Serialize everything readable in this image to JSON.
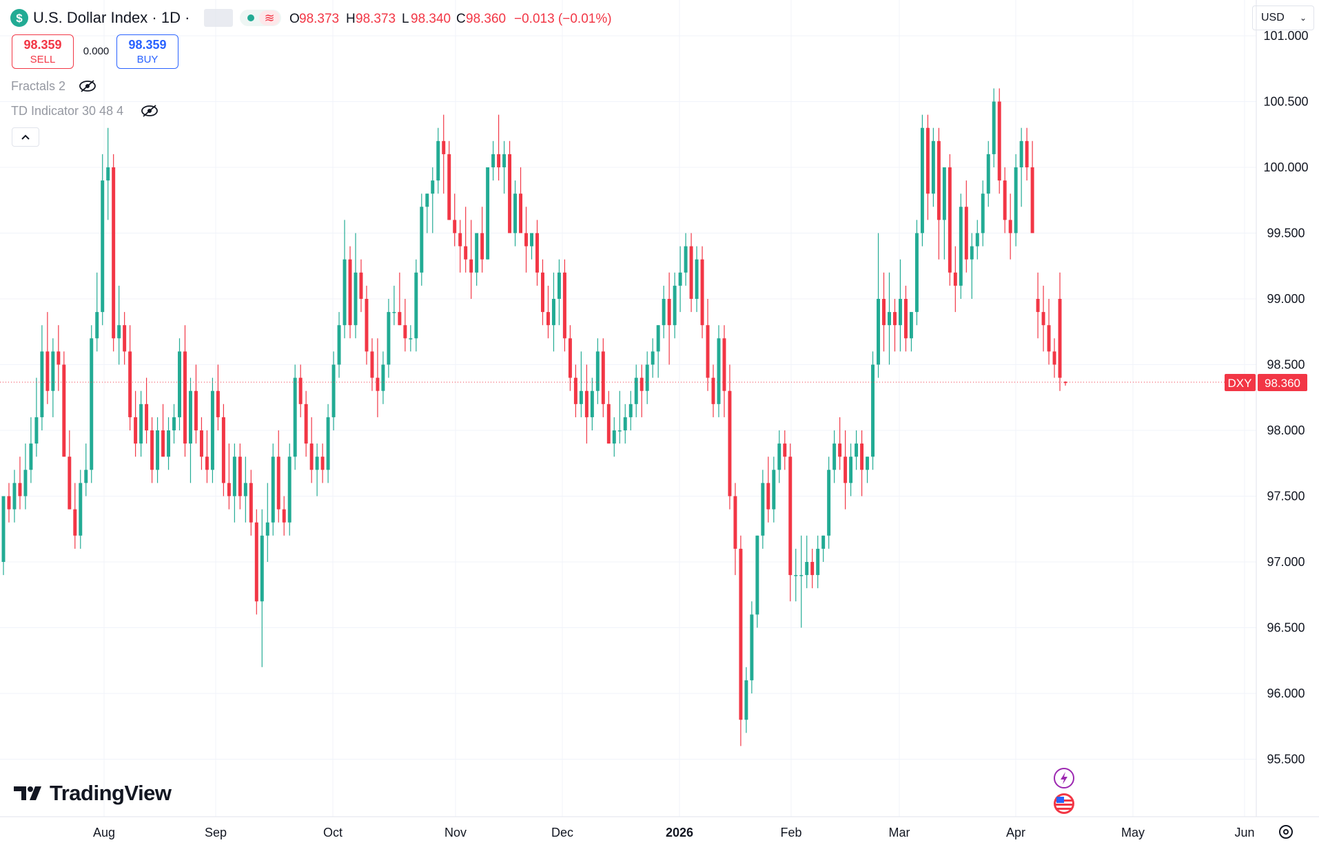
{
  "header": {
    "symbol_icon": "dollar-circle-icon",
    "title": "U.S. Dollar Index · 1D ·",
    "open_label": "O",
    "open": "98.373",
    "high_label": "H",
    "high": "98.373",
    "low_label": "L",
    "low": "98.340",
    "close_label": "C",
    "close": "98.360",
    "change": "−0.013 (−0.01%)"
  },
  "trade": {
    "sell_price": "98.359",
    "sell_label": "SELL",
    "spread": "0.000",
    "buy_price": "98.359",
    "buy_label": "BUY"
  },
  "indicators": [
    {
      "label": "Fractals 2",
      "icon": "eye-off-icon"
    },
    {
      "label": "TD Indicator 30 48 4",
      "icon": "eye-off-icon"
    }
  ],
  "currency": "USD",
  "brand": "TradingView",
  "colors": {
    "up": "#22ab94",
    "down": "#f23645",
    "grid": "#f0f3fa"
  },
  "chart_data": {
    "type": "candlestick",
    "symbol": "DXY",
    "last_price": "98.360",
    "y_ticks": [
      "101.000",
      "100.500",
      "100.000",
      "99.500",
      "99.000",
      "98.500",
      "98.000",
      "97.500",
      "97.000",
      "96.500",
      "96.000",
      "95.500"
    ],
    "x_ticks": [
      "Aug",
      "Sep",
      "Oct",
      "Nov",
      "Dec",
      "2026",
      "Feb",
      "Mar",
      "Apr",
      "May",
      "Jun"
    ],
    "ylim": [
      95.1,
      101.05
    ],
    "grid": true,
    "candles": [
      [
        97.0,
        97.5,
        96.9,
        97.5
      ],
      [
        97.5,
        97.6,
        97.3,
        97.4
      ],
      [
        97.4,
        97.7,
        97.3,
        97.6
      ],
      [
        97.6,
        97.8,
        97.4,
        97.5
      ],
      [
        97.5,
        97.9,
        97.4,
        97.7
      ],
      [
        97.7,
        98.1,
        97.6,
        97.9
      ],
      [
        97.9,
        98.4,
        97.8,
        98.1
      ],
      [
        98.1,
        98.8,
        98.0,
        98.6
      ],
      [
        98.6,
        98.9,
        98.2,
        98.3
      ],
      [
        98.3,
        98.7,
        98.1,
        98.6
      ],
      [
        98.6,
        98.8,
        98.3,
        98.5
      ],
      [
        98.5,
        98.6,
        97.8,
        97.8
      ],
      [
        97.8,
        98.0,
        97.4,
        97.4
      ],
      [
        97.4,
        97.6,
        97.1,
        97.2
      ],
      [
        97.2,
        97.7,
        97.1,
        97.6
      ],
      [
        97.6,
        97.9,
        97.5,
        97.7
      ],
      [
        97.7,
        98.8,
        97.6,
        98.7
      ],
      [
        98.7,
        99.2,
        98.6,
        98.9
      ],
      [
        98.9,
        100.1,
        98.8,
        99.9
      ],
      [
        99.9,
        100.3,
        99.6,
        100.0
      ],
      [
        100.0,
        100.1,
        98.6,
        98.7
      ],
      [
        98.7,
        99.1,
        98.5,
        98.8
      ],
      [
        98.8,
        98.9,
        98.5,
        98.6
      ],
      [
        98.6,
        98.8,
        98.0,
        98.1
      ],
      [
        98.1,
        98.3,
        97.8,
        97.9
      ],
      [
        97.9,
        98.3,
        97.8,
        98.2
      ],
      [
        98.2,
        98.4,
        97.9,
        98.0
      ],
      [
        98.0,
        98.1,
        97.6,
        97.7
      ],
      [
        97.7,
        98.1,
        97.6,
        98.0
      ],
      [
        98.0,
        98.2,
        97.8,
        97.8
      ],
      [
        97.8,
        98.1,
        97.7,
        98.0
      ],
      [
        98.0,
        98.2,
        97.9,
        98.1
      ],
      [
        98.1,
        98.7,
        98.0,
        98.6
      ],
      [
        98.6,
        98.8,
        97.8,
        97.9
      ],
      [
        97.9,
        98.4,
        97.6,
        98.3
      ],
      [
        98.3,
        98.5,
        97.9,
        98.0
      ],
      [
        98.0,
        98.1,
        97.7,
        97.8
      ],
      [
        97.8,
        98.0,
        97.6,
        97.7
      ],
      [
        97.7,
        98.4,
        97.6,
        98.3
      ],
      [
        98.3,
        98.5,
        98.0,
        98.1
      ],
      [
        98.1,
        98.2,
        97.5,
        97.6
      ],
      [
        97.6,
        97.9,
        97.4,
        97.5
      ],
      [
        97.5,
        97.9,
        97.3,
        97.8
      ],
      [
        97.8,
        97.9,
        97.4,
        97.5
      ],
      [
        97.5,
        97.8,
        97.3,
        97.6
      ],
      [
        97.6,
        97.7,
        97.2,
        97.3
      ],
      [
        97.3,
        97.4,
        96.6,
        96.7
      ],
      [
        96.7,
        97.4,
        96.2,
        97.2
      ],
      [
        97.2,
        97.6,
        97.0,
        97.3
      ],
      [
        97.3,
        97.9,
        97.2,
        97.8
      ],
      [
        97.8,
        98.0,
        97.3,
        97.4
      ],
      [
        97.4,
        97.5,
        97.2,
        97.3
      ],
      [
        97.3,
        97.9,
        97.2,
        97.8
      ],
      [
        97.8,
        98.5,
        97.7,
        98.4
      ],
      [
        98.4,
        98.5,
        98.1,
        98.2
      ],
      [
        98.2,
        98.3,
        97.8,
        97.9
      ],
      [
        97.9,
        98.1,
        97.6,
        97.7
      ],
      [
        97.7,
        97.9,
        97.5,
        97.8
      ],
      [
        97.8,
        97.9,
        97.6,
        97.7
      ],
      [
        97.7,
        98.2,
        97.6,
        98.1
      ],
      [
        98.1,
        98.6,
        98.0,
        98.5
      ],
      [
        98.5,
        98.9,
        98.4,
        98.8
      ],
      [
        98.8,
        99.6,
        98.7,
        99.3
      ],
      [
        99.3,
        99.4,
        98.7,
        98.8
      ],
      [
        98.8,
        99.5,
        98.7,
        99.2
      ],
      [
        99.2,
        99.3,
        98.9,
        99.0
      ],
      [
        99.0,
        99.1,
        98.5,
        98.6
      ],
      [
        98.6,
        98.7,
        98.3,
        98.4
      ],
      [
        98.4,
        98.7,
        98.1,
        98.3
      ],
      [
        98.3,
        98.6,
        98.2,
        98.5
      ],
      [
        98.5,
        99.0,
        98.4,
        98.9
      ],
      [
        98.9,
        99.1,
        98.8,
        98.9
      ],
      [
        98.9,
        99.2,
        98.8,
        98.8
      ],
      [
        98.8,
        99.0,
        98.6,
        98.7
      ],
      [
        98.7,
        98.8,
        98.6,
        98.7
      ],
      [
        98.7,
        99.3,
        98.6,
        99.2
      ],
      [
        99.2,
        99.8,
        99.1,
        99.7
      ],
      [
        99.7,
        99.8,
        99.5,
        99.8
      ],
      [
        99.8,
        100.0,
        99.5,
        99.9
      ],
      [
        99.9,
        100.3,
        99.8,
        100.2
      ],
      [
        100.2,
        100.4,
        99.8,
        100.1
      ],
      [
        100.1,
        100.2,
        99.6,
        99.6
      ],
      [
        99.6,
        99.8,
        99.4,
        99.5
      ],
      [
        99.5,
        99.6,
        99.2,
        99.4
      ],
      [
        99.4,
        99.7,
        99.2,
        99.3
      ],
      [
        99.3,
        99.6,
        99.0,
        99.2
      ],
      [
        99.2,
        99.5,
        99.1,
        99.5
      ],
      [
        99.5,
        99.7,
        99.2,
        99.3
      ],
      [
        99.3,
        100.0,
        99.3,
        100.0
      ],
      [
        100.0,
        100.2,
        99.9,
        100.1
      ],
      [
        100.1,
        100.4,
        99.9,
        100.0
      ],
      [
        100.0,
        100.2,
        99.8,
        100.1
      ],
      [
        100.1,
        100.2,
        99.5,
        99.5
      ],
      [
        99.5,
        99.9,
        99.4,
        99.8
      ],
      [
        99.8,
        100.0,
        99.5,
        99.5
      ],
      [
        99.5,
        99.7,
        99.2,
        99.4
      ],
      [
        99.4,
        99.5,
        99.3,
        99.5
      ],
      [
        99.5,
        99.6,
        99.1,
        99.2
      ],
      [
        99.2,
        99.3,
        98.8,
        98.9
      ],
      [
        98.9,
        99.1,
        98.7,
        98.8
      ],
      [
        98.8,
        99.2,
        98.6,
        99.0
      ],
      [
        99.0,
        99.3,
        98.8,
        99.2
      ],
      [
        99.2,
        99.3,
        98.6,
        98.7
      ],
      [
        98.7,
        98.8,
        98.3,
        98.4
      ],
      [
        98.4,
        98.5,
        98.1,
        98.2
      ],
      [
        98.2,
        98.6,
        98.1,
        98.3
      ],
      [
        98.3,
        98.5,
        97.9,
        98.1
      ],
      [
        98.1,
        98.4,
        98.0,
        98.3
      ],
      [
        98.3,
        98.7,
        98.2,
        98.6
      ],
      [
        98.6,
        98.7,
        98.1,
        98.2
      ],
      [
        98.2,
        98.3,
        97.9,
        97.9
      ],
      [
        97.9,
        98.1,
        97.8,
        98.0
      ],
      [
        98.0,
        98.3,
        97.9,
        98.0
      ],
      [
        98.0,
        98.2,
        97.9,
        98.1
      ],
      [
        98.1,
        98.3,
        98.0,
        98.2
      ],
      [
        98.2,
        98.5,
        98.1,
        98.4
      ],
      [
        98.4,
        98.5,
        98.1,
        98.3
      ],
      [
        98.3,
        98.6,
        98.2,
        98.5
      ],
      [
        98.5,
        98.7,
        98.4,
        98.6
      ],
      [
        98.6,
        98.8,
        98.4,
        98.8
      ],
      [
        98.8,
        99.1,
        98.7,
        99.0
      ],
      [
        99.0,
        99.2,
        98.5,
        98.8
      ],
      [
        98.8,
        99.2,
        98.7,
        99.1
      ],
      [
        99.1,
        99.4,
        98.9,
        99.2
      ],
      [
        99.2,
        99.5,
        99.1,
        99.4
      ],
      [
        99.4,
        99.5,
        98.9,
        99.0
      ],
      [
        99.0,
        99.4,
        98.9,
        99.3
      ],
      [
        99.3,
        99.4,
        98.7,
        98.8
      ],
      [
        98.8,
        99.0,
        98.3,
        98.4
      ],
      [
        98.4,
        98.5,
        98.1,
        98.2
      ],
      [
        98.2,
        98.8,
        98.1,
        98.7
      ],
      [
        98.7,
        98.8,
        98.1,
        98.3
      ],
      [
        98.3,
        98.5,
        97.4,
        97.5
      ],
      [
        97.5,
        97.6,
        96.9,
        97.1
      ],
      [
        97.1,
        97.2,
        95.6,
        95.8
      ],
      [
        95.8,
        96.2,
        95.7,
        96.1
      ],
      [
        96.1,
        96.7,
        96.0,
        96.6
      ],
      [
        96.6,
        97.2,
        96.5,
        97.2
      ],
      [
        97.2,
        97.7,
        97.1,
        97.6
      ],
      [
        97.6,
        97.8,
        97.3,
        97.4
      ],
      [
        97.4,
        97.8,
        97.3,
        97.7
      ],
      [
        97.7,
        98.0,
        97.6,
        97.9
      ],
      [
        97.9,
        98.0,
        97.7,
        97.8
      ],
      [
        97.8,
        97.9,
        96.7,
        96.9
      ],
      [
        96.9,
        97.1,
        96.7,
        96.9
      ],
      [
        96.9,
        97.2,
        96.5,
        96.9
      ],
      [
        96.9,
        97.2,
        96.8,
        97.0
      ],
      [
        97.0,
        97.1,
        96.8,
        96.9
      ],
      [
        96.9,
        97.2,
        96.8,
        97.1
      ],
      [
        97.1,
        97.2,
        97.0,
        97.2
      ],
      [
        97.2,
        97.8,
        97.1,
        97.7
      ],
      [
        97.7,
        98.0,
        97.6,
        97.9
      ],
      [
        97.9,
        98.1,
        97.7,
        97.8
      ],
      [
        97.8,
        98.0,
        97.4,
        97.6
      ],
      [
        97.6,
        97.9,
        97.5,
        97.8
      ],
      [
        97.8,
        98.0,
        97.7,
        97.9
      ],
      [
        97.9,
        98.0,
        97.5,
        97.7
      ],
      [
        97.7,
        97.8,
        97.6,
        97.8
      ],
      [
        97.8,
        98.6,
        97.7,
        98.5
      ],
      [
        98.5,
        99.5,
        98.4,
        99.0
      ],
      [
        99.0,
        99.2,
        98.6,
        98.8
      ],
      [
        98.8,
        99.2,
        98.5,
        98.9
      ],
      [
        98.9,
        99.0,
        98.6,
        98.8
      ],
      [
        98.8,
        99.3,
        98.6,
        99.0
      ],
      [
        99.0,
        99.1,
        98.6,
        98.7
      ],
      [
        98.7,
        98.9,
        98.6,
        98.9
      ],
      [
        98.9,
        99.6,
        98.8,
        99.5
      ],
      [
        99.5,
        100.4,
        99.4,
        100.3
      ],
      [
        100.3,
        100.4,
        99.6,
        99.8
      ],
      [
        99.8,
        100.3,
        99.7,
        100.2
      ],
      [
        100.2,
        100.3,
        99.3,
        99.6
      ],
      [
        99.6,
        100.0,
        99.3,
        100.0
      ],
      [
        100.0,
        100.1,
        99.1,
        99.2
      ],
      [
        99.2,
        99.4,
        98.9,
        99.1
      ],
      [
        99.1,
        99.8,
        99.0,
        99.7
      ],
      [
        99.7,
        99.9,
        99.2,
        99.3
      ],
      [
        99.3,
        99.5,
        99.0,
        99.4
      ],
      [
        99.4,
        99.6,
        99.3,
        99.5
      ],
      [
        99.5,
        99.9,
        99.4,
        99.8
      ],
      [
        99.8,
        100.2,
        99.7,
        100.1
      ],
      [
        100.1,
        100.6,
        100.0,
        100.5
      ],
      [
        100.5,
        100.6,
        99.8,
        99.9
      ],
      [
        99.9,
        100.0,
        99.5,
        99.6
      ],
      [
        99.6,
        99.8,
        99.3,
        99.5
      ],
      [
        99.5,
        100.1,
        99.4,
        100.0
      ],
      [
        100.0,
        100.3,
        99.7,
        100.2
      ],
      [
        100.2,
        100.3,
        99.9,
        100.0
      ],
      [
        100.0,
        100.2,
        99.5,
        99.5
      ],
      [
        99.0,
        99.2,
        98.7,
        98.9
      ],
      [
        98.9,
        99.1,
        98.6,
        98.8
      ],
      [
        98.8,
        99.0,
        98.5,
        98.6
      ],
      [
        98.6,
        98.7,
        98.4,
        98.5
      ],
      [
        99.0,
        99.2,
        98.3,
        98.4
      ],
      [
        98.37,
        98.373,
        98.34,
        98.36
      ]
    ]
  }
}
